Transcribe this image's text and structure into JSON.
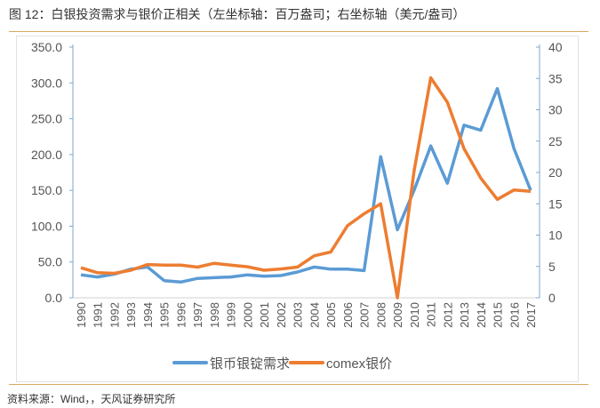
{
  "title": "图 12：白银投资需求与银价正相关（左坐标轴：百万盎司；右坐标轴（美元/盎司）",
  "footer": "资料来源：Wind，，天风证券研究所",
  "chart_data": {
    "type": "line",
    "title": "",
    "x": [
      "1990",
      "1991",
      "1992",
      "1993",
      "1994",
      "1995",
      "1996",
      "1997",
      "1998",
      "1999",
      "2000",
      "2001",
      "2002",
      "2003",
      "2004",
      "2005",
      "2006",
      "2007",
      "2008",
      "2009",
      "2010",
      "2011",
      "2012",
      "2013",
      "2014",
      "2015",
      "2016",
      "2017"
    ],
    "left_axis": {
      "ylim": [
        0,
        350
      ],
      "ticks": [
        "0.0",
        "50.0",
        "100.0",
        "150.0",
        "200.0",
        "250.0",
        "300.0",
        "350.0"
      ]
    },
    "right_axis": {
      "ylim": [
        0,
        40
      ],
      "ticks": [
        "0",
        "5",
        "10",
        "15",
        "20",
        "25",
        "30",
        "35",
        "40"
      ]
    },
    "grid": false,
    "legend_placement": "bottom",
    "series": [
      {
        "name": "银币银锭需求",
        "axis": "left",
        "color": "#5b9bd5",
        "values": [
          32,
          29,
          33,
          40,
          43,
          24,
          22,
          27,
          28,
          29,
          32,
          30,
          31,
          36,
          43,
          40,
          40,
          38,
          197,
          95,
          150,
          212,
          160,
          241,
          234,
          292,
          208,
          150
        ]
      },
      {
        "name": "comex银价",
        "axis": "right",
        "color": "#ed7d31",
        "values": [
          4.8,
          4.0,
          3.9,
          4.4,
          5.3,
          5.2,
          5.2,
          4.9,
          5.5,
          5.2,
          4.95,
          4.4,
          4.6,
          4.9,
          6.7,
          7.3,
          11.5,
          13.4,
          15.0,
          0,
          20.2,
          35.1,
          31.2,
          23.8,
          19.1,
          15.7,
          17.2,
          17.0
        ]
      }
    ]
  }
}
